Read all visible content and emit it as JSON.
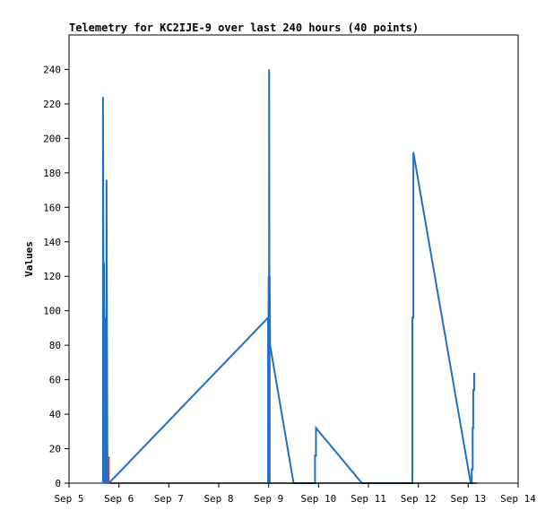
{
  "chart_data": {
    "type": "line",
    "title": "Telemetry for KC2IJE-9 over last 240 hours (40 points)",
    "ylabel": "Values",
    "xlabel": "",
    "xlim": [
      5,
      14
    ],
    "ylim": [
      0,
      260
    ],
    "x_ticks": [
      5,
      6,
      7,
      8,
      9,
      10,
      11,
      12,
      13,
      14
    ],
    "x_tick_labels": [
      "Sep 5",
      "Sep 6",
      "Sep 7",
      "Sep 8",
      "Sep 9",
      "Sep 10",
      "Sep 11",
      "Sep 12",
      "Sep 13",
      "Sep 14"
    ],
    "y_ticks": [
      0,
      20,
      40,
      60,
      80,
      100,
      120,
      140,
      160,
      180,
      200,
      220,
      240
    ],
    "grid": false,
    "series": [
      {
        "color": "#1f6fc5",
        "points": [
          [
            5.68,
            0
          ],
          [
            5.68,
            224
          ],
          [
            5.7,
            0
          ],
          [
            5.7,
            128
          ],
          [
            5.72,
            0
          ],
          [
            5.72,
            96
          ],
          [
            5.75,
            0
          ],
          [
            5.75,
            176
          ],
          [
            5.77,
            0
          ],
          [
            5.8,
            0
          ],
          [
            8.99,
            96
          ],
          [
            8.99,
            0
          ],
          [
            9.0,
            120
          ],
          [
            9.01,
            0
          ],
          [
            9.01,
            240
          ],
          [
            9.02,
            0
          ],
          [
            9.02,
            120
          ],
          [
            9.03,
            80
          ],
          [
            9.5,
            0
          ],
          [
            9.93,
            0
          ],
          [
            9.93,
            16
          ],
          [
            9.95,
            16
          ],
          [
            9.95,
            32
          ],
          [
            10.87,
            0
          ],
          [
            11.88,
            0
          ],
          [
            11.88,
            96
          ],
          [
            11.9,
            96
          ],
          [
            11.9,
            192
          ],
          [
            13.05,
            0
          ],
          [
            13.07,
            0
          ],
          [
            13.07,
            8
          ],
          [
            13.09,
            8
          ],
          [
            13.09,
            32
          ],
          [
            13.1,
            32
          ],
          [
            13.1,
            54
          ],
          [
            13.12,
            54
          ],
          [
            13.12,
            64
          ]
        ]
      },
      {
        "color": "#e02020",
        "points": [
          [
            5.8,
            0
          ],
          [
            5.8,
            15
          ],
          [
            5.82,
            15
          ]
        ]
      },
      {
        "color": "#000000",
        "points": [
          [
            5.82,
            0
          ],
          [
            13.18,
            0
          ]
        ]
      }
    ]
  }
}
